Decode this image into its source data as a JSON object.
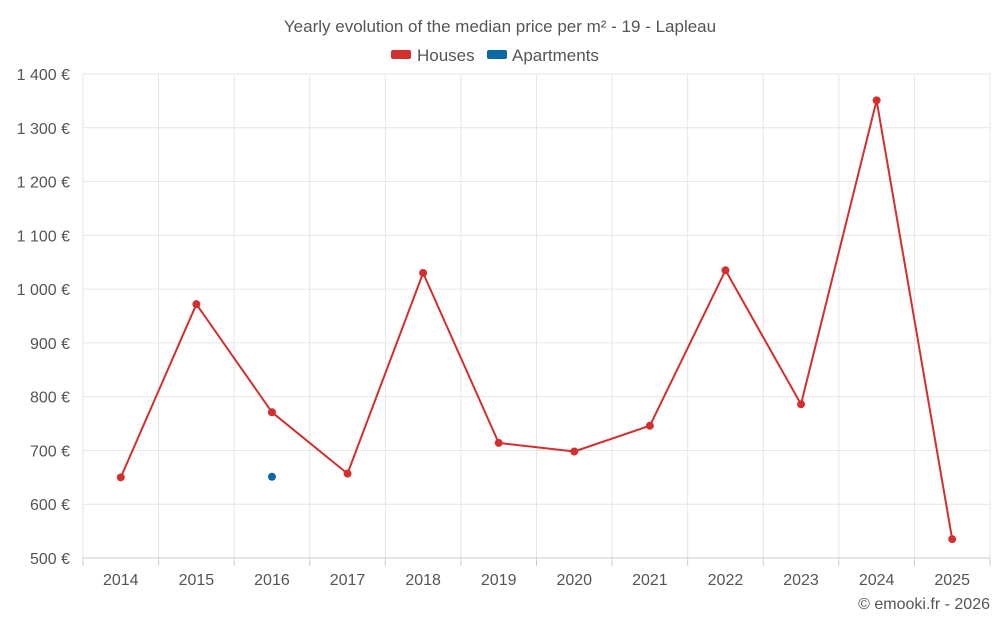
{
  "chart_data": {
    "type": "line",
    "title": "Yearly evolution of the median price per m² - 19 - Lapleau",
    "categories": [
      "2014",
      "2015",
      "2016",
      "2017",
      "2018",
      "2019",
      "2020",
      "2021",
      "2022",
      "2023",
      "2024",
      "2025"
    ],
    "ylim": [
      500,
      1400
    ],
    "y_ticks": [
      500,
      600,
      700,
      800,
      900,
      1000,
      1100,
      1200,
      1300,
      1400
    ],
    "y_tick_labels": [
      "500 €",
      "600 €",
      "700 €",
      "800 €",
      "900 €",
      "1 000 €",
      "1 100 €",
      "1 200 €",
      "1 300 €",
      "1 400 €"
    ],
    "grid": true,
    "legend_position": "top-center",
    "series": [
      {
        "name": "Houses",
        "color": "#d32f2f",
        "values": [
          650,
          972,
          771,
          657,
          1030,
          714,
          698,
          746,
          1035,
          786,
          1351,
          535
        ]
      },
      {
        "name": "Apartments",
        "color": "#0b6aa2",
        "values": [
          null,
          null,
          651,
          null,
          null,
          null,
          null,
          null,
          null,
          null,
          null,
          null
        ]
      }
    ]
  },
  "credit": "© emooki.fr - 2026"
}
